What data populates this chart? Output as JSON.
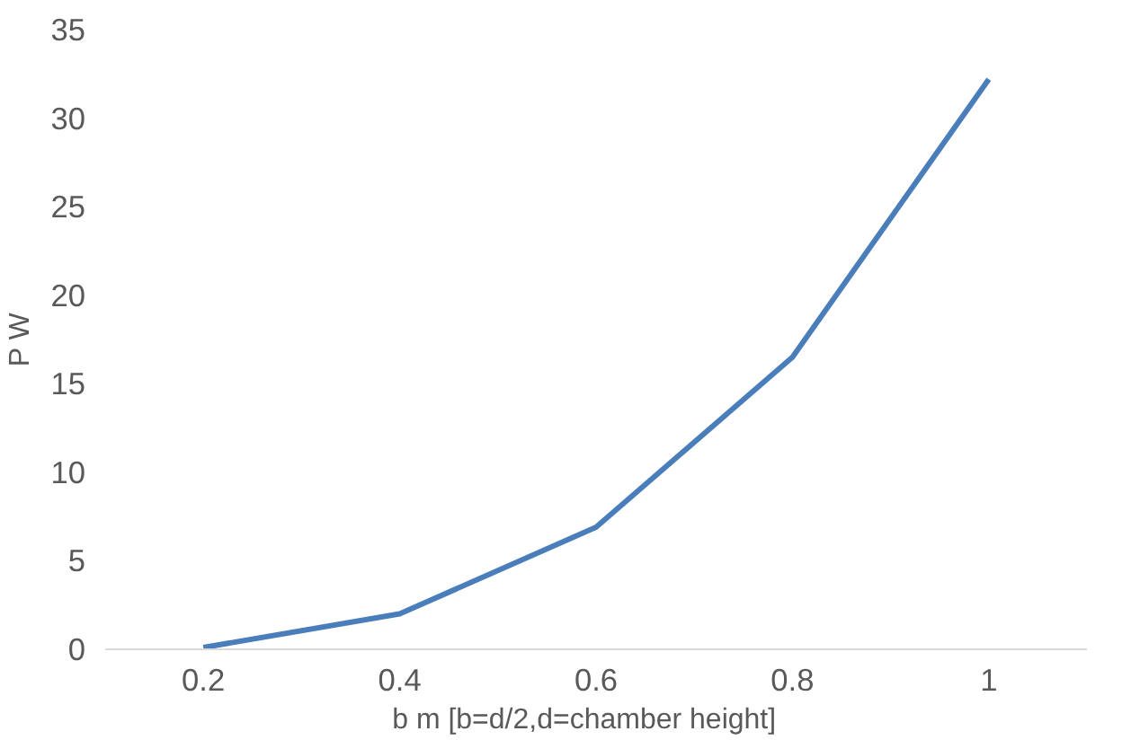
{
  "chart_data": {
    "type": "line",
    "xlabel": "b m    [b=d/2,d=chamber height]",
    "ylabel": "P W",
    "categories": [
      "0.2",
      "0.4",
      "0.6",
      "0.8",
      "1"
    ],
    "series": [
      {
        "color": "#4a7ebb",
        "values": [
          0.1,
          2.0,
          6.9,
          16.5,
          32.2
        ]
      }
    ],
    "ylim": [
      0,
      35
    ],
    "yticks": [
      0,
      5,
      10,
      15,
      20,
      25,
      30,
      35
    ],
    "grid": false,
    "marker": "none",
    "line_style": "solid"
  }
}
